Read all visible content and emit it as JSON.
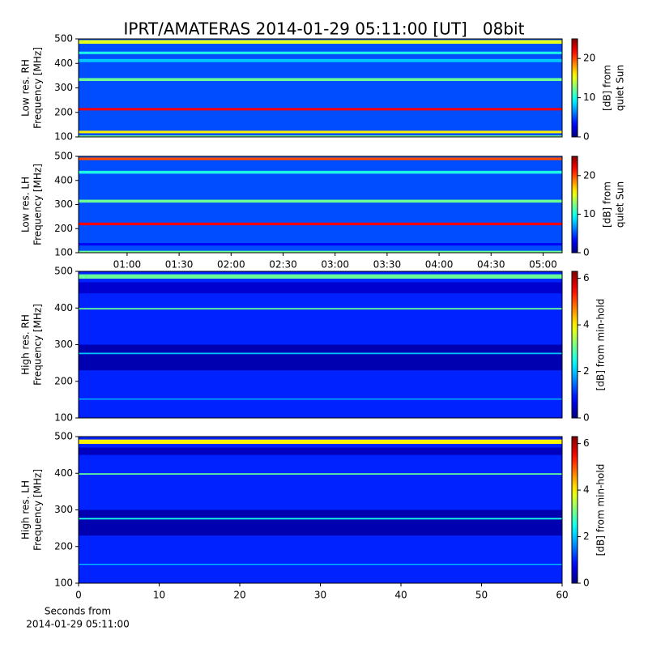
{
  "title": "IPRT/AMATERAS 2014-01-29 05:11:00 [UT]   08bit",
  "chart_data": [
    {
      "type": "heatmap",
      "colormap": "jet",
      "ylabel": [
        "Low res. RH",
        "Frequency [MHz]"
      ],
      "ylim": [
        100,
        500
      ],
      "yticks": [
        100,
        200,
        300,
        400,
        500
      ],
      "xlim": [
        32,
        311
      ],
      "background": 5,
      "bands": [
        {
          "y": [
            480,
            495
          ],
          "value": 15
        },
        {
          "y": [
            438,
            448
          ],
          "value": 10
        },
        {
          "y": [
            405,
            418
          ],
          "value": 8
        },
        {
          "y": [
            328,
            340
          ],
          "value": 12
        },
        {
          "y": [
            208,
            218
          ],
          "value": 22
        },
        {
          "y": [
            115,
            125
          ],
          "value": 16
        },
        {
          "y": [
            100,
            106
          ],
          "value": 12
        }
      ],
      "clim": [
        0,
        25
      ],
      "cticks": [
        0,
        10,
        20
      ],
      "clabel": [
        "[dB] from",
        "quiet Sun"
      ]
    },
    {
      "type": "heatmap",
      "colormap": "jet",
      "ylabel": [
        "Low res. LH",
        "Frequency [MHz]"
      ],
      "ylim": [
        100,
        500
      ],
      "yticks": [
        100,
        200,
        300,
        400,
        500
      ],
      "xlim": [
        32,
        311
      ],
      "xticks": [
        {
          "value": 60,
          "label": "01:00"
        },
        {
          "value": 90,
          "label": "01:30"
        },
        {
          "value": 120,
          "label": "02:00"
        },
        {
          "value": 150,
          "label": "02:30"
        },
        {
          "value": 180,
          "label": "03:00"
        },
        {
          "value": 210,
          "label": "03:30"
        },
        {
          "value": 240,
          "label": "04:00"
        },
        {
          "value": 270,
          "label": "04:30"
        },
        {
          "value": 300,
          "label": "05:00"
        }
      ],
      "background": 5,
      "bands": [
        {
          "y": [
            484,
            495
          ],
          "value": 20
        },
        {
          "y": [
            428,
            440
          ],
          "value": 10
        },
        {
          "y": [
            308,
            320
          ],
          "value": 12
        },
        {
          "y": [
            214,
            225
          ],
          "value": 22
        },
        {
          "y": [
            130,
            140
          ],
          "value": 3
        },
        {
          "y": [
            100,
            108
          ],
          "value": 12
        }
      ],
      "clim": [
        0,
        25
      ],
      "cticks": [
        0,
        10,
        20
      ],
      "clabel": [
        "[dB] from",
        "quiet Sun"
      ]
    },
    {
      "type": "heatmap",
      "colormap": "jet",
      "ylabel": [
        "High res. RH",
        "Frequency [MHz]"
      ],
      "ylim": [
        100,
        500
      ],
      "yticks": [
        100,
        200,
        300,
        400,
        500
      ],
      "xlim": [
        0,
        60
      ],
      "background": 1,
      "bands": [
        {
          "y": [
            480,
            492
          ],
          "value": 3
        },
        {
          "y": [
            440,
            470
          ],
          "value": 0.5
        },
        {
          "y": [
            396,
            400
          ],
          "value": 3
        },
        {
          "y": [
            230,
            300
          ],
          "value": 0.3
        },
        {
          "y": [
            274,
            278
          ],
          "value": 2
        },
        {
          "y": [
            150,
            153
          ],
          "value": 2
        }
      ],
      "clim": [
        0,
        6.3
      ],
      "cticks": [
        0,
        2,
        4,
        6
      ],
      "clabel": [
        "[dB] from min-hold"
      ]
    },
    {
      "type": "heatmap",
      "colormap": "jet",
      "ylabel": [
        "High res. LH",
        "Frequency [MHz]"
      ],
      "ylim": [
        100,
        500
      ],
      "yticks": [
        100,
        200,
        300,
        400,
        500
      ],
      "xlim": [
        0,
        60
      ],
      "xticks": [
        0,
        10,
        20,
        30,
        40,
        50,
        60
      ],
      "xlabel": [
        "Seconds from",
        "2014-01-29 05:11:00"
      ],
      "background": 1,
      "bands": [
        {
          "y": [
            480,
            492
          ],
          "value": 4
        },
        {
          "y": [
            450,
            470
          ],
          "value": 0.4
        },
        {
          "y": [
            396,
            400
          ],
          "value": 3
        },
        {
          "y": [
            230,
            300
          ],
          "value": 0.3
        },
        {
          "y": [
            274,
            278
          ],
          "value": 2.5
        },
        {
          "y": [
            150,
            153
          ],
          "value": 2
        }
      ],
      "clim": [
        0,
        6.3
      ],
      "cticks": [
        0,
        2,
        4,
        6
      ],
      "clabel": [
        "[dB] from min-hold"
      ]
    }
  ]
}
